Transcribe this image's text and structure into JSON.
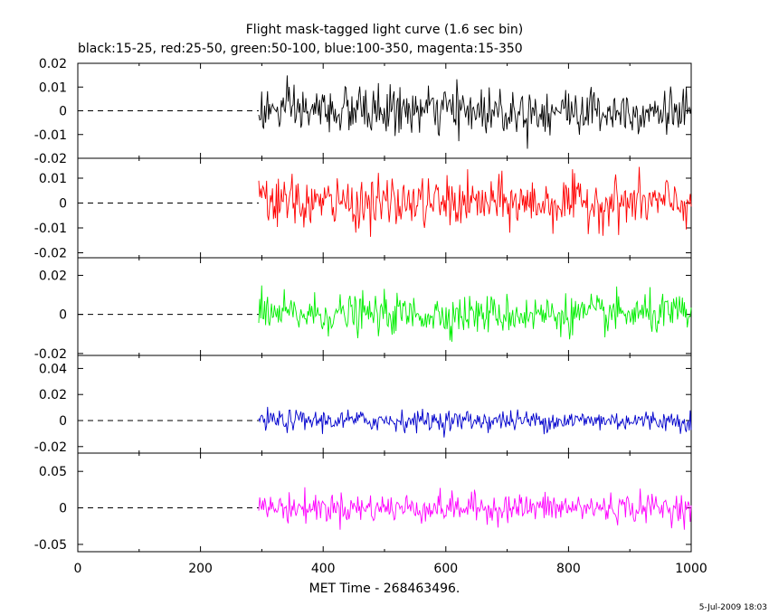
{
  "title": "Flight mask-tagged light curve (1.6 sec bin)",
  "subtitle": "black:15-25, red:25-50, green:50-100, blue:100-350, magenta:15-350",
  "footer_timestamp": "5-Jul-2009 18:03",
  "chart_data": {
    "type": "line",
    "xlabel": "MET Time - 268463496.",
    "xlim": [
      0,
      1000
    ],
    "x_ticks": [
      0,
      200,
      400,
      600,
      800,
      1000
    ],
    "data_range": [
      295,
      1000
    ],
    "bin_seconds": 1.6,
    "baseline": 0,
    "panels": [
      {
        "name": "black:15-25",
        "color": "#000000",
        "ylim": [
          -0.02,
          0.02
        ],
        "y_ticks": [
          -0.02,
          -0.01,
          0,
          0.01,
          0.02
        ],
        "y_tick_labels": [
          "-0.02",
          "-0.01",
          "0",
          "0.01",
          "0.02"
        ],
        "noise_sigma": 0.005,
        "min_value": -0.016,
        "max_value": 0.017
      },
      {
        "name": "red:25-50",
        "color": "#ff0000",
        "ylim": [
          -0.022,
          0.018
        ],
        "y_ticks": [
          -0.02,
          -0.01,
          0,
          0.01
        ],
        "y_tick_labels": [
          "-0.02",
          "-0.01",
          "0",
          "0.01"
        ],
        "noise_sigma": 0.005,
        "min_value": -0.015,
        "max_value": 0.015
      },
      {
        "name": "green:50-100",
        "color": "#00ee00",
        "ylim": [
          -0.021,
          0.029
        ],
        "y_ticks": [
          -0.02,
          0,
          0.02
        ],
        "y_tick_labels": [
          "-0.02",
          "0",
          "0.02"
        ],
        "noise_sigma": 0.005,
        "min_value": -0.014,
        "max_value": 0.016
      },
      {
        "name": "blue:100-350",
        "color": "#0000cc",
        "ylim": [
          -0.025,
          0.05
        ],
        "y_ticks": [
          -0.02,
          0,
          0.02,
          0.04
        ],
        "y_tick_labels": [
          "-0.02",
          "0",
          "0.02",
          "0.04"
        ],
        "noise_sigma": 0.004,
        "min_value": -0.013,
        "max_value": 0.015
      },
      {
        "name": "magenta:15-350",
        "color": "#ff00ff",
        "ylim": [
          -0.06,
          0.075
        ],
        "y_ticks": [
          -0.05,
          0,
          0.05
        ],
        "y_tick_labels": [
          "-0.05",
          "0",
          "0.05"
        ],
        "noise_sigma": 0.01,
        "min_value": -0.03,
        "max_value": 0.035
      }
    ]
  }
}
